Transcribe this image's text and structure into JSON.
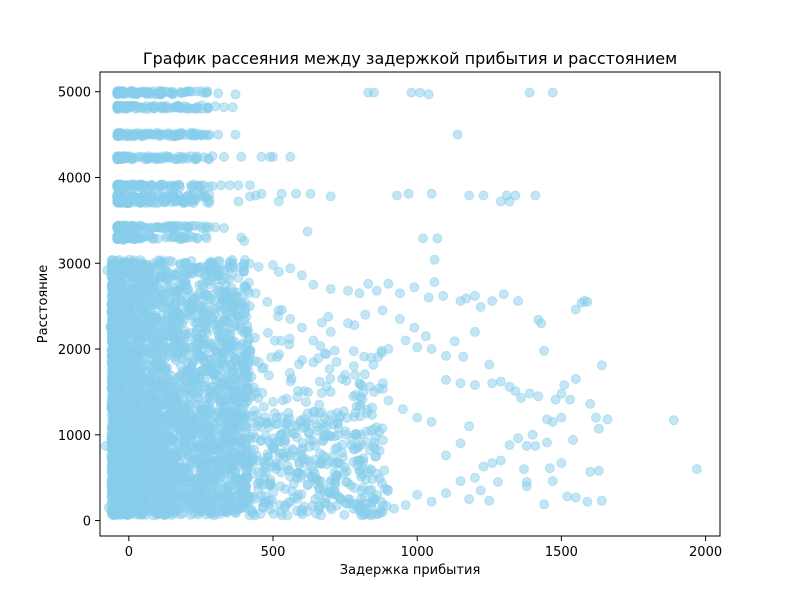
{
  "chart_data": {
    "type": "scatter",
    "title": "График рассеяния между задержкой прибытия и расстоянием",
    "xlabel": "Задержка прибытия",
    "ylabel": "Расстояние",
    "xlim": [
      -100,
      2050
    ],
    "ylim": [
      -180,
      5230
    ],
    "xticks": [
      0,
      500,
      1000,
      1500,
      2000
    ],
    "yticks": [
      0,
      1000,
      2000,
      3000,
      4000,
      5000
    ],
    "xtick_labels": [
      "0",
      "500",
      "1000",
      "1500",
      "2000"
    ],
    "ytick_labels": [
      "0",
      "1000",
      "2000",
      "3000",
      "4000",
      "5000"
    ],
    "grid": false,
    "legend": "none",
    "marker_color": "#87ceeb",
    "marker_alpha": 0.5,
    "series": [
      {
        "points": [
          [
            -80,
            870
          ],
          [
            -75,
            2920
          ],
          [
            -70,
            150
          ],
          [
            -65,
            2260
          ],
          [
            -60,
            2450
          ],
          [
            -55,
            1180
          ],
          [
            -40,
            4990
          ],
          [
            -30,
            4830
          ],
          [
            -20,
            4500
          ],
          [
            -20,
            4230
          ],
          [
            -20,
            3900
          ],
          [
            -20,
            3720
          ],
          [
            -20,
            3420
          ],
          [
            -20,
            3270
          ],
          [
            0,
            1500
          ],
          [
            20,
            800
          ],
          [
            40,
            2200
          ],
          [
            60,
            400
          ],
          [
            100,
            1900
          ],
          [
            150,
            600
          ],
          [
            200,
            2700
          ],
          [
            250,
            1300
          ],
          [
            300,
            300
          ],
          [
            350,
            2500
          ],
          [
            270,
            4990
          ],
          [
            310,
            4980
          ],
          [
            370,
            4970
          ],
          [
            300,
            4830
          ],
          [
            330,
            4820
          ],
          [
            360,
            4820
          ],
          [
            280,
            4500
          ],
          [
            310,
            4500
          ],
          [
            370,
            4500
          ],
          [
            290,
            4250
          ],
          [
            330,
            4240
          ],
          [
            390,
            4240
          ],
          [
            460,
            4240
          ],
          [
            490,
            4240
          ],
          [
            500,
            4240
          ],
          [
            560,
            4240
          ],
          [
            290,
            3900
          ],
          [
            320,
            3910
          ],
          [
            350,
            3910
          ],
          [
            380,
            3910
          ],
          [
            420,
            3910
          ],
          [
            440,
            3790
          ],
          [
            460,
            3810
          ],
          [
            530,
            3810
          ],
          [
            580,
            3810
          ],
          [
            630,
            3810
          ],
          [
            700,
            3780
          ],
          [
            520,
            3720
          ],
          [
            380,
            3720
          ],
          [
            420,
            3780
          ],
          [
            300,
            3420
          ],
          [
            330,
            3410
          ],
          [
            390,
            3300
          ],
          [
            400,
            3260
          ],
          [
            620,
            3370
          ],
          [
            830,
            4990
          ],
          [
            850,
            4990
          ],
          [
            980,
            4990
          ],
          [
            1010,
            4990
          ],
          [
            1040,
            4970
          ],
          [
            1390,
            4990
          ],
          [
            1470,
            4990
          ],
          [
            1140,
            4500
          ],
          [
            930,
            3790
          ],
          [
            970,
            3810
          ],
          [
            1050,
            3810
          ],
          [
            1180,
            3790
          ],
          [
            1230,
            3790
          ],
          [
            1290,
            3720
          ],
          [
            1310,
            3790
          ],
          [
            1320,
            3720
          ],
          [
            1340,
            3790
          ],
          [
            1410,
            3790
          ],
          [
            1020,
            3290
          ],
          [
            1070,
            3290
          ],
          [
            1060,
            3040
          ],
          [
            400,
            2900
          ],
          [
            450,
            2960
          ],
          [
            500,
            2980
          ],
          [
            520,
            2900
          ],
          [
            560,
            2940
          ],
          [
            600,
            2860
          ],
          [
            640,
            2750
          ],
          [
            700,
            2700
          ],
          [
            760,
            2680
          ],
          [
            800,
            2650
          ],
          [
            830,
            2760
          ],
          [
            860,
            2680
          ],
          [
            900,
            2760
          ],
          [
            940,
            2650
          ],
          [
            990,
            2720
          ],
          [
            1040,
            2600
          ],
          [
            1060,
            2780
          ],
          [
            1090,
            2620
          ],
          [
            1150,
            2560
          ],
          [
            1170,
            2590
          ],
          [
            1200,
            2620
          ],
          [
            1220,
            2490
          ],
          [
            1260,
            2560
          ],
          [
            1300,
            2640
          ],
          [
            1350,
            2560
          ],
          [
            1420,
            2340
          ],
          [
            1430,
            2300
          ],
          [
            1440,
            1980
          ],
          [
            1570,
            2540
          ],
          [
            1580,
            2560
          ],
          [
            1590,
            2550
          ],
          [
            1550,
            2460
          ],
          [
            1640,
            1810
          ],
          [
            1000,
            2020
          ],
          [
            1050,
            2000
          ],
          [
            1100,
            1920
          ],
          [
            1130,
            2090
          ],
          [
            1160,
            1910
          ],
          [
            1200,
            2200
          ],
          [
            1250,
            1820
          ],
          [
            1290,
            1620
          ],
          [
            1320,
            1560
          ],
          [
            1100,
            1640
          ],
          [
            1150,
            1600
          ],
          [
            1200,
            1580
          ],
          [
            1260,
            1600
          ],
          [
            1340,
            1510
          ],
          [
            1360,
            1430
          ],
          [
            1390,
            1480
          ],
          [
            1420,
            1450
          ],
          [
            1480,
            1410
          ],
          [
            1500,
            1480
          ],
          [
            1510,
            1580
          ],
          [
            1530,
            1410
          ],
          [
            1550,
            1650
          ],
          [
            1600,
            1360
          ],
          [
            1620,
            1200
          ],
          [
            1660,
            1180
          ],
          [
            1890,
            1170
          ],
          [
            1970,
            600
          ],
          [
            1450,
            1180
          ],
          [
            1470,
            1150
          ],
          [
            1500,
            1200
          ],
          [
            1540,
            940
          ],
          [
            1630,
            1070
          ],
          [
            1400,
            1000
          ],
          [
            1410,
            870
          ],
          [
            1450,
            910
          ],
          [
            1380,
            870
          ],
          [
            1350,
            960
          ],
          [
            1320,
            880
          ],
          [
            1290,
            700
          ],
          [
            1260,
            670
          ],
          [
            1230,
            630
          ],
          [
            1280,
            450
          ],
          [
            1370,
            600
          ],
          [
            1380,
            450
          ],
          [
            1380,
            400
          ],
          [
            1440,
            190
          ],
          [
            1460,
            610
          ],
          [
            1470,
            460
          ],
          [
            1500,
            670
          ],
          [
            1520,
            280
          ],
          [
            1550,
            270
          ],
          [
            1590,
            220
          ],
          [
            1600,
            570
          ],
          [
            1640,
            230
          ],
          [
            1630,
            580
          ],
          [
            1200,
            500
          ],
          [
            1220,
            350
          ],
          [
            1250,
            230
          ],
          [
            1180,
            250
          ],
          [
            1150,
            460
          ],
          [
            1100,
            320
          ],
          [
            1050,
            220
          ],
          [
            1000,
            300
          ],
          [
            960,
            180
          ],
          [
            920,
            140
          ],
          [
            880,
            100
          ],
          [
            840,
            200
          ],
          [
            800,
            120
          ],
          [
            760,
            250
          ],
          [
            700,
            160
          ],
          [
            650,
            80
          ],
          [
            600,
            130
          ],
          [
            550,
            60
          ],
          [
            1100,
            760
          ],
          [
            1150,
            900
          ],
          [
            1180,
            1100
          ],
          [
            1050,
            1150
          ],
          [
            1000,
            1200
          ],
          [
            950,
            1300
          ],
          [
            900,
            1400
          ],
          [
            850,
            1500
          ],
          [
            800,
            1600
          ],
          [
            750,
            1700
          ],
          [
            720,
            1850
          ],
          [
            680,
            1950
          ],
          [
            640,
            2100
          ],
          [
            600,
            2250
          ],
          [
            560,
            2350
          ],
          [
            520,
            2450
          ],
          [
            480,
            2550
          ],
          [
            440,
            2650
          ],
          [
            700,
            2200
          ],
          [
            760,
            2300
          ],
          [
            820,
            2400
          ],
          [
            880,
            2450
          ],
          [
            940,
            2350
          ],
          [
            990,
            2250
          ],
          [
            1030,
            2150
          ],
          [
            960,
            2100
          ],
          [
            900,
            2000
          ],
          [
            840,
            1900
          ],
          [
            780,
            1800
          ],
          [
            740,
            1650
          ],
          [
            700,
            1500
          ],
          [
            660,
            1350
          ],
          [
            620,
            1250
          ],
          [
            580,
            1100
          ],
          [
            540,
            950
          ],
          [
            500,
            850
          ]
        ]
      }
    ]
  }
}
